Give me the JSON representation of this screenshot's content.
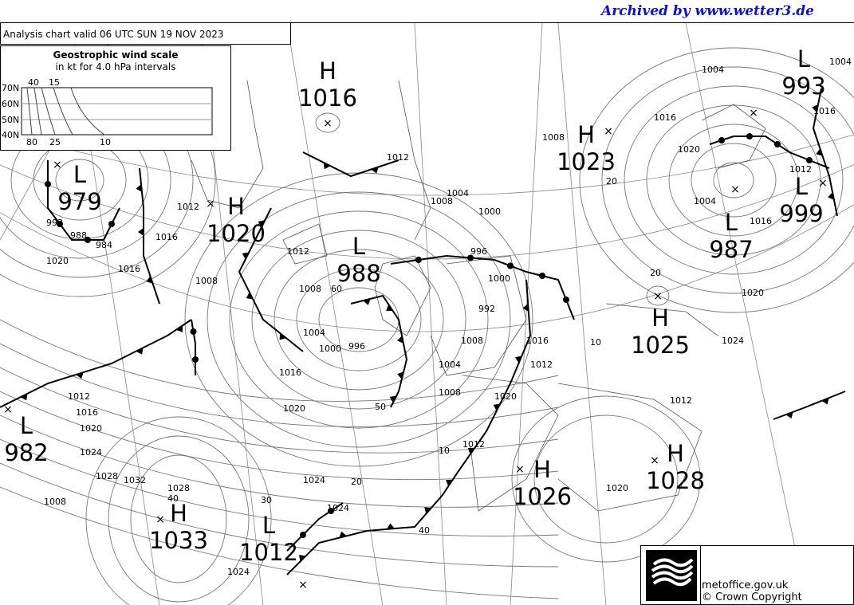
{
  "watermark": "Archived by www.wetter3.de",
  "chart_title": "Analysis chart  valid 06 UTC SUN 19  NOV 2023",
  "wind_scale": {
    "title": "Geostrophic wind scale",
    "subtitle": "in kt for 4.0 hPa intervals",
    "lat_labels": [
      "70N",
      "60N",
      "50N",
      "40N"
    ],
    "top_labels": [
      "40",
      "15"
    ],
    "bottom_labels": [
      "80",
      "25",
      "10"
    ]
  },
  "pressure_centres": [
    {
      "type": "H",
      "value": "1016"
    },
    {
      "type": "L",
      "value": "979"
    },
    {
      "type": "H",
      "value": "1020"
    },
    {
      "type": "L",
      "value": "988"
    },
    {
      "type": "H",
      "value": "1023"
    },
    {
      "type": "L",
      "value": "993"
    },
    {
      "type": "L",
      "value": "999"
    },
    {
      "type": "L",
      "value": "987"
    },
    {
      "type": "H",
      "value": "1025"
    },
    {
      "type": "L",
      "value": "982"
    },
    {
      "type": "H",
      "value": "1026"
    },
    {
      "type": "H",
      "value": "1028"
    },
    {
      "type": "H",
      "value": "1033"
    },
    {
      "type": "L",
      "value": "1012"
    }
  ],
  "isobar_labels": [
    "1012",
    "1016",
    "1012",
    "1008",
    "1004",
    "1000",
    "996",
    "992",
    "988",
    "984",
    "1020",
    "1016",
    "1012",
    "1008",
    "1004",
    "1000",
    "996",
    "992",
    "1016",
    "1020",
    "1024",
    "1008",
    "1012",
    "1016",
    "1020",
    "1024",
    "1028",
    "1032",
    "1028",
    "1024",
    "1020",
    "1024",
    "1020",
    "1016",
    "1012",
    "1008",
    "1004",
    "1000",
    "1004",
    "1008",
    "1016",
    "1020",
    "1012",
    "1004",
    "1016",
    "1020",
    "1024",
    "1012",
    "1008",
    "1016",
    "1012",
    "1008",
    "1004"
  ],
  "wind_labels": [
    "20",
    "10",
    "10",
    "20",
    "30",
    "40",
    "40",
    "60",
    "50",
    "20"
  ],
  "footer": {
    "logo_text": "Met Office",
    "site": "metoffice.gov.uk",
    "copyright": "© Crown Copyright"
  }
}
